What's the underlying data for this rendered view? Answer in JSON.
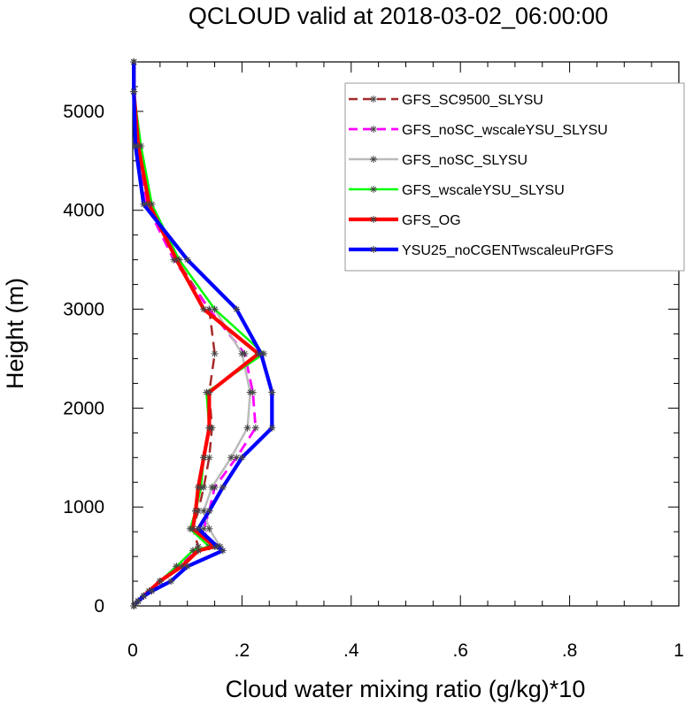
{
  "chart_data": {
    "type": "line",
    "title": "QCLOUD valid at 2018-03-02_06:00:00",
    "xlabel": "Cloud water mixing ratio (g/kg)*10",
    "ylabel": "Height (m)",
    "xlim": [
      0,
      1
    ],
    "ylim": [
      0,
      5500
    ],
    "xticks": [
      "0",
      ".2",
      ".4",
      ".6",
      ".8",
      "1"
    ],
    "yticks": [
      "0",
      "1000",
      "2000",
      "3000",
      "4000",
      "5000"
    ],
    "legend_position": "top-right",
    "series": [
      {
        "name": "GFS_SC9500_SLYSU",
        "color": "#a52a2a",
        "style": "dashed",
        "points": [
          [
            0.002,
            0
          ],
          [
            0.005,
            20
          ],
          [
            0.01,
            50
          ],
          [
            0.02,
            100
          ],
          [
            0.03,
            150
          ],
          [
            0.05,
            250
          ],
          [
            0.09,
            400
          ],
          [
            0.115,
            560
          ],
          [
            0.12,
            600
          ],
          [
            0.11,
            780
          ],
          [
            0.12,
            960
          ],
          [
            0.13,
            1200
          ],
          [
            0.14,
            1500
          ],
          [
            0.145,
            1800
          ],
          [
            0.14,
            2160
          ],
          [
            0.15,
            2550
          ],
          [
            0.14,
            3000
          ],
          [
            0.08,
            3500
          ],
          [
            0.03,
            4060
          ],
          [
            0.01,
            4650
          ],
          [
            0.002,
            5200
          ],
          [
            0.002,
            5500
          ]
        ]
      },
      {
        "name": "GFS_noSC_wscaleYSU_SLYSU",
        "color": "#ff00ff",
        "style": "dashed",
        "points": [
          [
            0.002,
            0
          ],
          [
            0.005,
            20
          ],
          [
            0.01,
            50
          ],
          [
            0.02,
            100
          ],
          [
            0.03,
            150
          ],
          [
            0.05,
            250
          ],
          [
            0.08,
            400
          ],
          [
            0.12,
            560
          ],
          [
            0.14,
            600
          ],
          [
            0.13,
            780
          ],
          [
            0.14,
            960
          ],
          [
            0.15,
            1200
          ],
          [
            0.19,
            1500
          ],
          [
            0.225,
            1800
          ],
          [
            0.22,
            2160
          ],
          [
            0.205,
            2550
          ],
          [
            0.14,
            3000
          ],
          [
            0.075,
            3500
          ],
          [
            0.025,
            4060
          ],
          [
            0.01,
            4650
          ],
          [
            0.002,
            5200
          ],
          [
            0.002,
            5500
          ]
        ]
      },
      {
        "name": "GFS_noSC_SLYSU",
        "color": "#bbbbbb",
        "style": "solid",
        "points": [
          [
            0.002,
            0
          ],
          [
            0.005,
            20
          ],
          [
            0.01,
            50
          ],
          [
            0.02,
            100
          ],
          [
            0.03,
            150
          ],
          [
            0.05,
            250
          ],
          [
            0.09,
            400
          ],
          [
            0.12,
            560
          ],
          [
            0.16,
            600
          ],
          [
            0.14,
            780
          ],
          [
            0.13,
            960
          ],
          [
            0.145,
            1200
          ],
          [
            0.18,
            1500
          ],
          [
            0.21,
            1800
          ],
          [
            0.215,
            2160
          ],
          [
            0.2,
            2550
          ],
          [
            0.15,
            3000
          ],
          [
            0.085,
            3500
          ],
          [
            0.03,
            4060
          ],
          [
            0.01,
            4650
          ],
          [
            0.002,
            5200
          ],
          [
            0.002,
            5500
          ]
        ]
      },
      {
        "name": "GFS_wscaleYSU_SLYSU",
        "color": "#00ff00",
        "style": "solid",
        "points": [
          [
            0.002,
            0
          ],
          [
            0.005,
            20
          ],
          [
            0.01,
            50
          ],
          [
            0.02,
            100
          ],
          [
            0.03,
            150
          ],
          [
            0.05,
            250
          ],
          [
            0.08,
            400
          ],
          [
            0.11,
            560
          ],
          [
            0.14,
            600
          ],
          [
            0.105,
            780
          ],
          [
            0.115,
            960
          ],
          [
            0.125,
            1200
          ],
          [
            0.13,
            1500
          ],
          [
            0.14,
            1800
          ],
          [
            0.135,
            2160
          ],
          [
            0.24,
            2550
          ],
          [
            0.15,
            3000
          ],
          [
            0.085,
            3500
          ],
          [
            0.035,
            4060
          ],
          [
            0.015,
            4650
          ],
          [
            0.002,
            5200
          ],
          [
            0.002,
            5500
          ]
        ]
      },
      {
        "name": "GFS_OG",
        "color": "#ff0000",
        "style": "solid",
        "points": [
          [
            0.002,
            0
          ],
          [
            0.005,
            20
          ],
          [
            0.01,
            50
          ],
          [
            0.02,
            100
          ],
          [
            0.03,
            150
          ],
          [
            0.05,
            250
          ],
          [
            0.09,
            400
          ],
          [
            0.12,
            560
          ],
          [
            0.15,
            600
          ],
          [
            0.11,
            780
          ],
          [
            0.115,
            960
          ],
          [
            0.12,
            1200
          ],
          [
            0.13,
            1500
          ],
          [
            0.14,
            1800
          ],
          [
            0.14,
            2160
          ],
          [
            0.23,
            2550
          ],
          [
            0.13,
            3000
          ],
          [
            0.08,
            3500
          ],
          [
            0.03,
            4060
          ],
          [
            0.01,
            4650
          ],
          [
            0.002,
            5200
          ],
          [
            0.002,
            5500
          ]
        ]
      },
      {
        "name": "YSU25_noCGENTwscaleuPrGFS",
        "color": "#0000ff",
        "style": "solid",
        "points": [
          [
            0.002,
            0
          ],
          [
            0.005,
            20
          ],
          [
            0.01,
            50
          ],
          [
            0.02,
            100
          ],
          [
            0.035,
            150
          ],
          [
            0.07,
            250
          ],
          [
            0.1,
            400
          ],
          [
            0.165,
            560
          ],
          [
            0.155,
            600
          ],
          [
            0.12,
            780
          ],
          [
            0.14,
            960
          ],
          [
            0.165,
            1200
          ],
          [
            0.2,
            1500
          ],
          [
            0.255,
            1800
          ],
          [
            0.255,
            2160
          ],
          [
            0.235,
            2550
          ],
          [
            0.19,
            3000
          ],
          [
            0.1,
            3500
          ],
          [
            0.02,
            4060
          ],
          [
            0.005,
            4650
          ],
          [
            0.002,
            5200
          ],
          [
            0.002,
            5500
          ]
        ]
      }
    ]
  }
}
